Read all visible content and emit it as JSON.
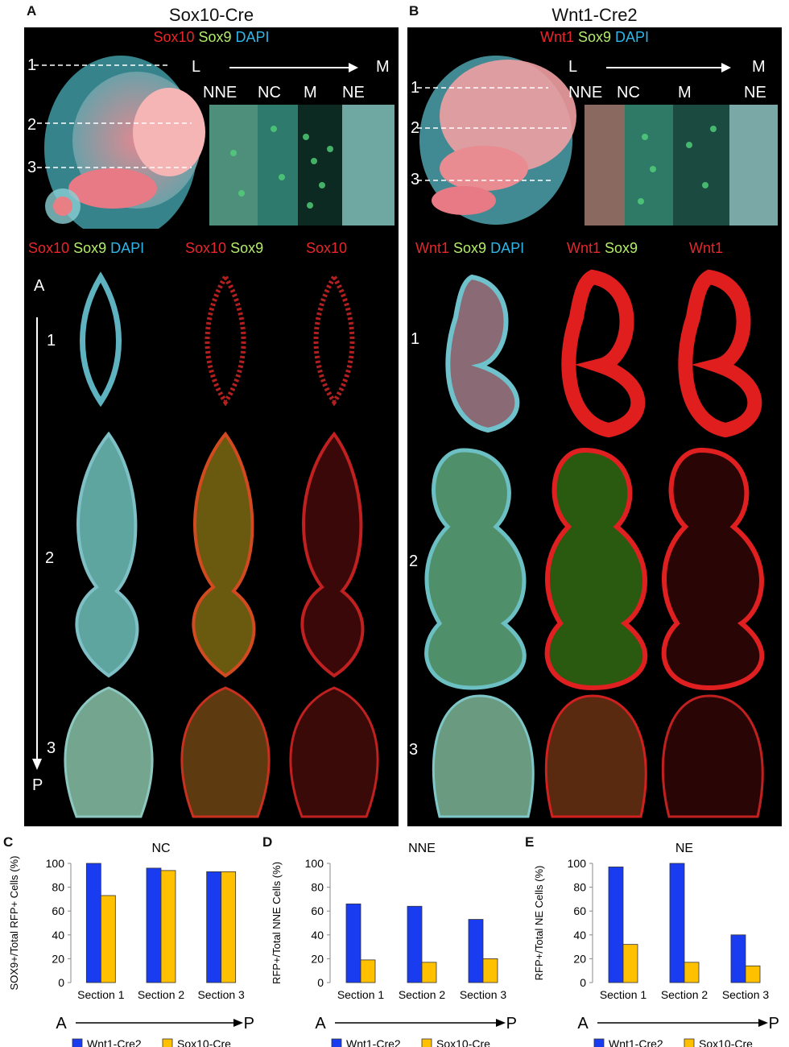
{
  "panel_a": {
    "letter": "A",
    "title": "Sox10-Cre",
    "stain_top": [
      {
        "text": "Sox10",
        "color": "red"
      },
      {
        "text": "Sox9",
        "color": "green"
      },
      {
        "text": "DAPI",
        "color": "blue"
      }
    ],
    "axis_l": "L",
    "axis_m": "M",
    "regions": [
      "NNE",
      "NC",
      "M",
      "NE"
    ],
    "section_nums": [
      "1",
      "2",
      "3"
    ],
    "col_labels": [
      [
        {
          "text": "Sox10",
          "color": "red"
        },
        {
          "text": "Sox9",
          "color": "green"
        },
        {
          "text": "DAPI",
          "color": "blue"
        }
      ],
      [
        {
          "text": "Sox10",
          "color": "red"
        },
        {
          "text": "Sox9",
          "color": "green"
        }
      ],
      [
        {
          "text": "Sox10",
          "color": "red"
        }
      ]
    ],
    "ap_a": "A",
    "ap_p": "P"
  },
  "panel_b": {
    "letter": "B",
    "title": "Wnt1-Cre2",
    "stain_top": [
      {
        "text": "Wnt1",
        "color": "red"
      },
      {
        "text": "Sox9",
        "color": "green"
      },
      {
        "text": "DAPI",
        "color": "blue"
      }
    ],
    "axis_l": "L",
    "axis_m": "M",
    "regions": [
      "NNE",
      "NC",
      "M",
      "NE"
    ],
    "section_nums": [
      "1",
      "2",
      "3"
    ],
    "col_labels": [
      [
        {
          "text": "Wnt1",
          "color": "red"
        },
        {
          "text": "Sox9",
          "color": "green"
        },
        {
          "text": "DAPI",
          "color": "blue"
        }
      ],
      [
        {
          "text": "Wnt1",
          "color": "red"
        },
        {
          "text": "Sox9",
          "color": "green"
        }
      ],
      [
        {
          "text": "Wnt1",
          "color": "red"
        }
      ]
    ]
  },
  "colors": {
    "wnt1_cre2": "#1a3cf0",
    "sox10_cre": "#ffc000",
    "red": "#e8262a",
    "green": "#b4ec6a",
    "blue": "#2eb6e8"
  },
  "chart_data": [
    {
      "letter": "C",
      "type": "bar",
      "title": "NC",
      "ylabel": "SOX9+/Total RFP+ Cells (%)",
      "categories": [
        "Section 1",
        "Section 2",
        "Section 3"
      ],
      "series": [
        {
          "name": "Wnt1-Cre2",
          "values": [
            100,
            96,
            93
          ]
        },
        {
          "name": "Sox10-Cre",
          "values": [
            73,
            94,
            93
          ]
        }
      ],
      "ylim": [
        0,
        100
      ],
      "yticks": [
        0,
        20,
        40,
        60,
        80,
        100
      ],
      "ap": [
        "A",
        "P"
      ]
    },
    {
      "letter": "D",
      "type": "bar",
      "title": "NNE",
      "ylabel": "RFP+/Total NNE Cells (%)",
      "categories": [
        "Section 1",
        "Section 2",
        "Section 3"
      ],
      "series": [
        {
          "name": "Wnt1-Cre2",
          "values": [
            66,
            64,
            53
          ]
        },
        {
          "name": "Sox10-Cre",
          "values": [
            19,
            17,
            20
          ]
        }
      ],
      "ylim": [
        0,
        100
      ],
      "yticks": [
        0,
        20,
        40,
        60,
        80,
        100
      ],
      "ap": [
        "A",
        "P"
      ]
    },
    {
      "letter": "E",
      "type": "bar",
      "title": "NE",
      "ylabel": "RFP+/Total NE Cells (%)",
      "categories": [
        "Section 1",
        "Section 2",
        "Section 3"
      ],
      "series": [
        {
          "name": "Wnt1-Cre2",
          "values": [
            97,
            100,
            40
          ]
        },
        {
          "name": "Sox10-Cre",
          "values": [
            32,
            17,
            14
          ]
        }
      ],
      "ylim": [
        0,
        100
      ],
      "yticks": [
        0,
        20,
        40,
        60,
        80,
        100
      ],
      "ap": [
        "A",
        "P"
      ]
    }
  ]
}
